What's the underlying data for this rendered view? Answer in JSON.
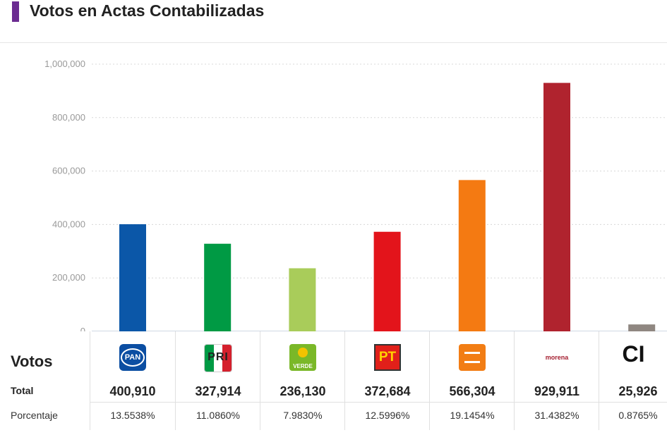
{
  "header": {
    "title": "Votos en Actas Contabilizadas",
    "accent_color": "#6b2c91"
  },
  "chart_data": {
    "type": "bar",
    "title": "Votos en Actas Contabilizadas",
    "xlabel": "",
    "ylabel": "",
    "ylim": [
      0,
      1000000
    ],
    "y_ticks": [
      "1,000,000",
      "800,000",
      "600,000",
      "400,000",
      "200,000",
      "0"
    ],
    "y_tick_values": [
      1000000,
      800000,
      600000,
      400000,
      200000,
      0
    ],
    "grid": true,
    "categories": [
      "PAN",
      "PRI",
      "VERDE",
      "PT",
      "MC",
      "morena",
      "CI"
    ],
    "values": [
      400910,
      327914,
      236130,
      372684,
      566304,
      929911,
      25926
    ],
    "colors": [
      "#0b57a8",
      "#009a44",
      "#a9cc5a",
      "#e3141b",
      "#f47a12",
      "#b0232e",
      "#8f8781"
    ]
  },
  "table": {
    "row_labels": {
      "votos": "Votos",
      "total": "Total",
      "porcentaje": "Porcentaje"
    },
    "parties": [
      {
        "logo": "PAN",
        "logo_icon": "pan-logo-icon",
        "total": "400,910",
        "pct": "13.5538%"
      },
      {
        "logo": "PRI",
        "logo_icon": "pri-logo-icon",
        "total": "327,914",
        "pct": "11.0860%"
      },
      {
        "logo": "VERDE",
        "logo_icon": "verde-logo-icon",
        "total": "236,130",
        "pct": "7.9830%"
      },
      {
        "logo": "PT",
        "logo_icon": "pt-logo-icon",
        "total": "372,684",
        "pct": "12.5996%"
      },
      {
        "logo": "MC",
        "logo_icon": "mc-logo-icon",
        "total": "566,304",
        "pct": "19.1454%"
      },
      {
        "logo": "morena",
        "logo_icon": "morena-logo-icon",
        "total": "929,911",
        "pct": "31.4382%"
      },
      {
        "logo": "CI",
        "logo_icon": "ci-logo-icon",
        "total": "25,926",
        "pct": "0.8765%"
      }
    ]
  }
}
